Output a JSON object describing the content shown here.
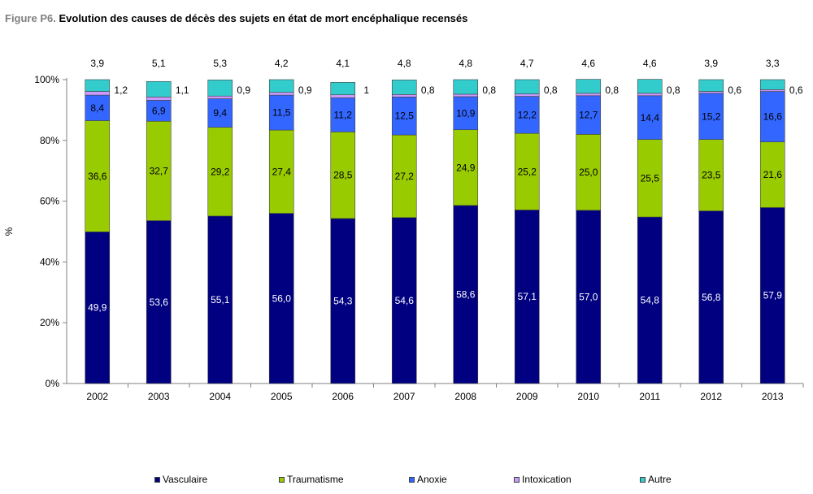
{
  "title_prefix": "Figure P6.",
  "title_text": " Evolution des causes de décès des sujets en état de mort encéphalique recensés",
  "chart_data": {
    "type": "bar",
    "stacked": true,
    "ylabel": "%",
    "xlabel": "",
    "ylim": [
      0,
      100
    ],
    "yticks": [
      "0%",
      "20%",
      "40%",
      "60%",
      "80%",
      "100%"
    ],
    "categories": [
      "2002",
      "2003",
      "2004",
      "2005",
      "2006",
      "2007",
      "2008",
      "2009",
      "2010",
      "2011",
      "2012",
      "2013"
    ],
    "series": [
      {
        "name": "Vasculaire",
        "color": "#000080",
        "values": [
          49.9,
          53.6,
          55.1,
          56.0,
          54.3,
          54.6,
          58.6,
          57.1,
          57.0,
          54.8,
          56.8,
          57.9
        ],
        "labels": [
          "49,9",
          "53,6",
          "55,1",
          "56,0",
          "54,3",
          "54,6",
          "58,6",
          "57,1",
          "57,0",
          "54,8",
          "56,8",
          "57,9"
        ]
      },
      {
        "name": "Traumatisme",
        "color": "#99CC00",
        "values": [
          36.6,
          32.7,
          29.2,
          27.4,
          28.5,
          27.2,
          24.9,
          25.2,
          25.0,
          25.5,
          23.5,
          21.6
        ],
        "labels": [
          "36,6",
          "32,7",
          "29,2",
          "27,4",
          "28,5",
          "27,2",
          "24,9",
          "25,2",
          "25,0",
          "25,5",
          "23,5",
          "21,6"
        ]
      },
      {
        "name": "Anoxie",
        "color": "#3366FF",
        "values": [
          8.4,
          6.9,
          9.4,
          11.5,
          11.2,
          12.5,
          10.9,
          12.2,
          12.7,
          14.4,
          15.2,
          16.6
        ],
        "labels": [
          "8,4",
          "6,9",
          "9,4",
          "11,5",
          "11,2",
          "12,5",
          "10,9",
          "12,2",
          "12,7",
          "14,4",
          "15,2",
          "16,6"
        ]
      },
      {
        "name": "Intoxication",
        "color": "#CC99FF",
        "values": [
          1.2,
          1.1,
          0.9,
          0.9,
          1.0,
          0.8,
          0.8,
          0.8,
          0.8,
          0.8,
          0.6,
          0.6
        ],
        "labels": [
          "1,2",
          "1,1",
          "0,9",
          "0,9",
          "1",
          "0,8",
          "0,8",
          "0,8",
          "0,8",
          "0,8",
          "0,6",
          "0,6"
        ]
      },
      {
        "name": "Autre",
        "color": "#33CCCC",
        "values": [
          3.9,
          5.1,
          5.3,
          4.2,
          4.1,
          4.8,
          4.8,
          4.7,
          4.6,
          4.6,
          3.9,
          3.3
        ],
        "labels": [
          "3,9",
          "5,1",
          "5,3",
          "4,2",
          "4,1",
          "4,8",
          "4,8",
          "4,7",
          "4,6",
          "4,6",
          "3,9",
          "3,3"
        ]
      }
    ],
    "legend_position": "bottom",
    "grid": false
  }
}
